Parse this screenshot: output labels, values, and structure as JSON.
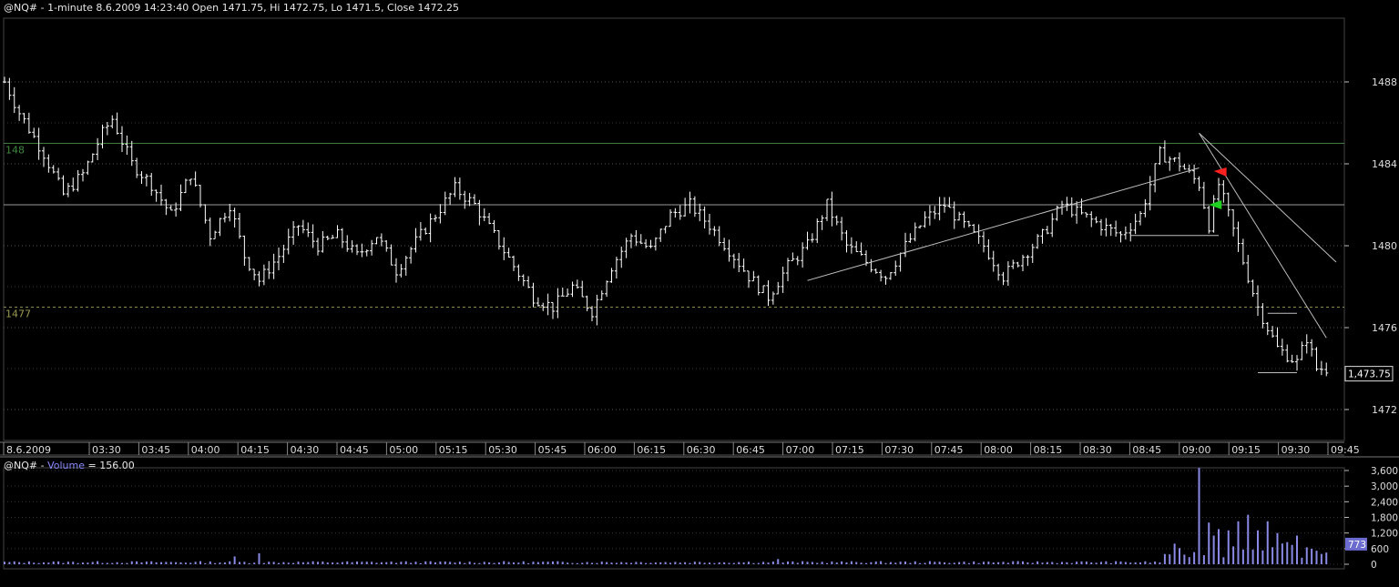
{
  "header": {
    "symbol": "@NQ#",
    "info": " - 1-minute 8.6.2009 14:23:40 Open 1471.75, Hi 1472.75, Lo 1471.5, Close 1472.25"
  },
  "volume_header": {
    "symbol": "@NQ#",
    "sep": " - ",
    "series": "Volume",
    "value_text": " = 156.00"
  },
  "levels": {
    "level_1485_label": "148",
    "level_1477_label": "1477",
    "last_price_label": "1,473.75",
    "last_volume_label": "773"
  },
  "colors": {
    "background": "#000000",
    "bars": "#ffffff",
    "grid": "#555555",
    "volume": "#8a8ae6",
    "level_green": "#3f7a3f",
    "level_olive": "#8a8a4a",
    "arrow_red": "#ff2020",
    "arrow_green": "#20d020"
  },
  "chart_data": [
    {
      "type": "ohlc",
      "title": "@NQ# - 1-minute",
      "x_tick_labels": [
        "8.6.2009",
        "03:30",
        "03:45",
        "04:00",
        "04:15",
        "04:30",
        "04:45",
        "05:00",
        "05:15",
        "05:30",
        "05:45",
        "06:00",
        "06:15",
        "06:30",
        "06:45",
        "07:00",
        "07:15",
        "07:30",
        "07:45",
        "08:00",
        "08:15",
        "08:30",
        "08:45",
        "09:00",
        "09:15",
        "09:30",
        "09:45"
      ],
      "y_tick_labels": [
        "1488",
        "1484",
        "1480",
        "1476",
        "1472"
      ],
      "ylim": [
        1470,
        1491
      ],
      "horizontal_levels": [
        1485,
        1482,
        1477
      ],
      "price_path": [
        [
          0,
          1488
        ],
        [
          3,
          1486.5
        ],
        [
          8,
          1484.5
        ],
        [
          12,
          1482.5
        ],
        [
          16,
          1483.5
        ],
        [
          20,
          1485.5
        ],
        [
          22,
          1486.2
        ],
        [
          26,
          1484
        ],
        [
          30,
          1483
        ],
        [
          34,
          1481.5
        ],
        [
          38,
          1483.5
        ],
        [
          42,
          1480.5
        ],
        [
          46,
          1482
        ],
        [
          49,
          1479.5
        ],
        [
          52,
          1478.3
        ],
        [
          56,
          1479.5
        ],
        [
          60,
          1481
        ],
        [
          64,
          1480
        ],
        [
          68,
          1480.5
        ],
        [
          72,
          1479.5
        ],
        [
          76,
          1480.5
        ],
        [
          80,
          1478.8
        ],
        [
          84,
          1480.2
        ],
        [
          88,
          1481.5
        ],
        [
          92,
          1482.8
        ],
        [
          96,
          1482
        ],
        [
          100,
          1480.5
        ],
        [
          104,
          1479
        ],
        [
          108,
          1477.5
        ],
        [
          112,
          1477
        ],
        [
          116,
          1478
        ],
        [
          120,
          1476.8
        ],
        [
          124,
          1479
        ],
        [
          128,
          1480.5
        ],
        [
          132,
          1479.8
        ],
        [
          136,
          1481.5
        ],
        [
          140,
          1482
        ],
        [
          144,
          1481
        ],
        [
          148,
          1479.8
        ],
        [
          152,
          1478.5
        ],
        [
          156,
          1477.5
        ],
        [
          160,
          1479
        ],
        [
          164,
          1480
        ],
        [
          168,
          1482
        ],
        [
          172,
          1480
        ],
        [
          176,
          1479.2
        ],
        [
          180,
          1478.5
        ],
        [
          184,
          1480
        ],
        [
          188,
          1481.3
        ],
        [
          192,
          1482
        ],
        [
          196,
          1481
        ],
        [
          200,
          1480
        ],
        [
          204,
          1478.5
        ],
        [
          208,
          1479.5
        ],
        [
          212,
          1480.5
        ],
        [
          216,
          1482
        ],
        [
          220,
          1481.5
        ],
        [
          224,
          1481
        ],
        [
          228,
          1480.5
        ],
        [
          232,
          1481.5
        ],
        [
          236,
          1484.5
        ],
        [
          240,
          1484
        ],
        [
          244,
          1483
        ],
        [
          246,
          1481
        ],
        [
          248,
          1483
        ],
        [
          252,
          1480
        ],
        [
          256,
          1477
        ],
        [
          260,
          1475
        ],
        [
          264,
          1474.3
        ],
        [
          266,
          1475.5
        ],
        [
          268,
          1474
        ]
      ],
      "trend_lines": [
        {
          "from": [
            164,
            1478.3
          ],
          "to": [
            244,
            1483.8
          ]
        },
        {
          "from": [
            230,
            1480.5
          ],
          "to": [
            248,
            1480.5
          ]
        },
        {
          "from": [
            244,
            1485.5
          ],
          "to": [
            272,
            1479.2
          ]
        },
        {
          "from": [
            244,
            1485.5
          ],
          "to": [
            270,
            1475.5
          ]
        },
        {
          "from": [
            256,
            1473.8
          ],
          "to": [
            264,
            1473.8
          ]
        },
        {
          "from": [
            258,
            1476.7
          ],
          "to": [
            264,
            1476.7
          ]
        }
      ],
      "markers": [
        {
          "type": "sell-arrow",
          "x": 247,
          "y": 1483.6
        },
        {
          "type": "buy-arrow",
          "x": 246,
          "y": 1482
        }
      ]
    },
    {
      "type": "bar",
      "title": "@NQ# - Volume = 156.00",
      "y_tick_labels": [
        "3,600",
        "3,000",
        "2,400",
        "1,800",
        "1,200",
        "600",
        "0"
      ],
      "ylim": [
        0,
        3900
      ],
      "series": [
        {
          "name": "Volume",
          "spikes": [
            [
              47,
              300
            ],
            [
              52,
              420
            ],
            [
              158,
              200
            ],
            [
              238,
              380
            ],
            [
              240,
              620
            ],
            [
              244,
              3700
            ],
            [
              246,
              1600
            ],
            [
              247,
              1100
            ],
            [
              248,
              1350
            ],
            [
              250,
              1300
            ],
            [
              252,
              1650
            ],
            [
              254,
              1900
            ],
            [
              256,
              1300
            ],
            [
              258,
              1650
            ],
            [
              260,
              1200
            ],
            [
              262,
              850
            ],
            [
              264,
              1100
            ],
            [
              266,
              650
            ],
            [
              268,
              520
            ],
            [
              270,
              450
            ]
          ]
        }
      ]
    }
  ]
}
